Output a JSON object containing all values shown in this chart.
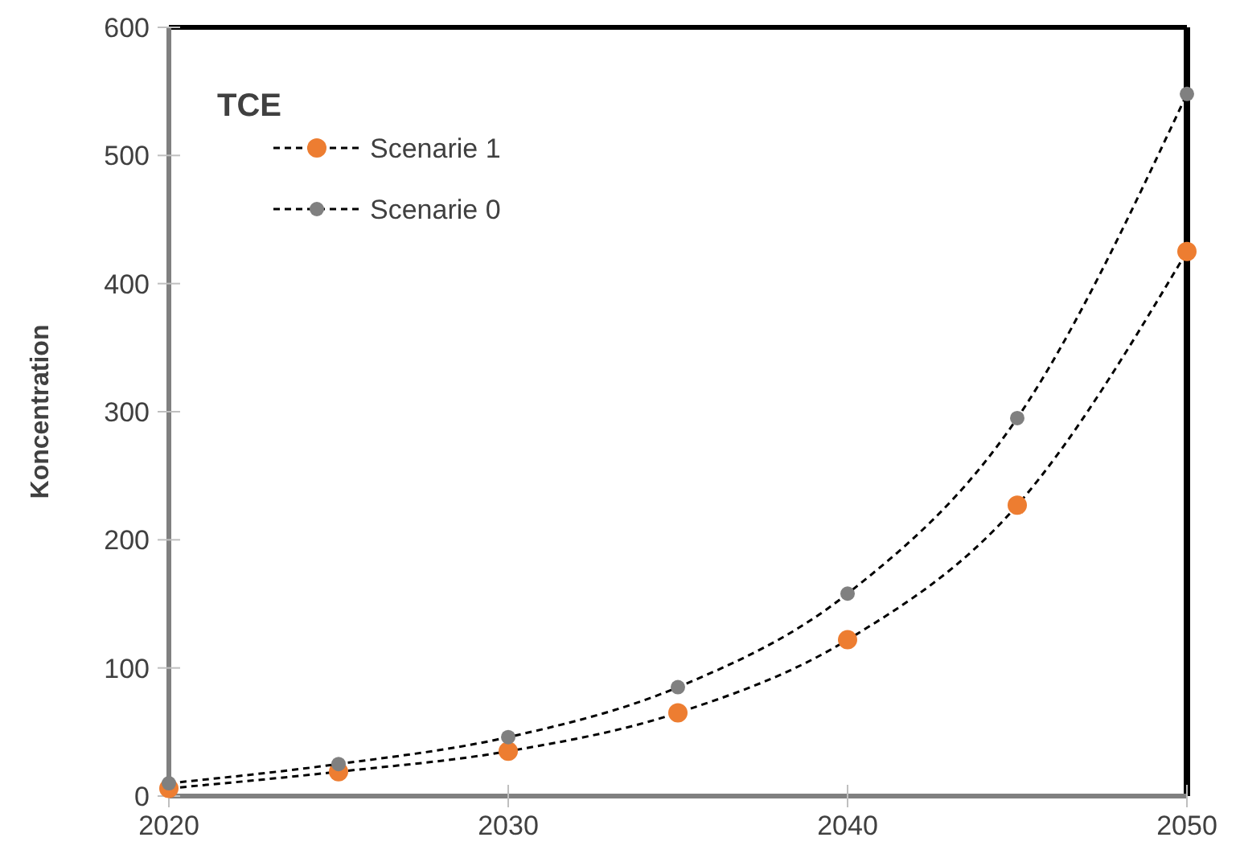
{
  "chart_data": {
    "type": "line",
    "title": "TCE",
    "ylabel": "Koncentration",
    "x": [
      2020,
      2025,
      2030,
      2035,
      2040,
      2045,
      2050
    ],
    "series": [
      {
        "name": "Scenarie 1",
        "color": "#ed7d31",
        "values": [
          6,
          19,
          35,
          65,
          122,
          227,
          425
        ]
      },
      {
        "name": "Scenarie 0",
        "color": "#808080",
        "values": [
          10,
          25,
          46,
          85,
          158,
          295,
          548
        ]
      }
    ],
    "xlim": [
      2020,
      2050
    ],
    "xticks": [
      2020,
      2030,
      2040,
      2050
    ],
    "ylim": [
      0,
      600
    ],
    "yticks": [
      0,
      100,
      200,
      300,
      400,
      500,
      600
    ],
    "grid": false,
    "legend": "top left",
    "marker": "circle",
    "line_style": "dashed"
  }
}
